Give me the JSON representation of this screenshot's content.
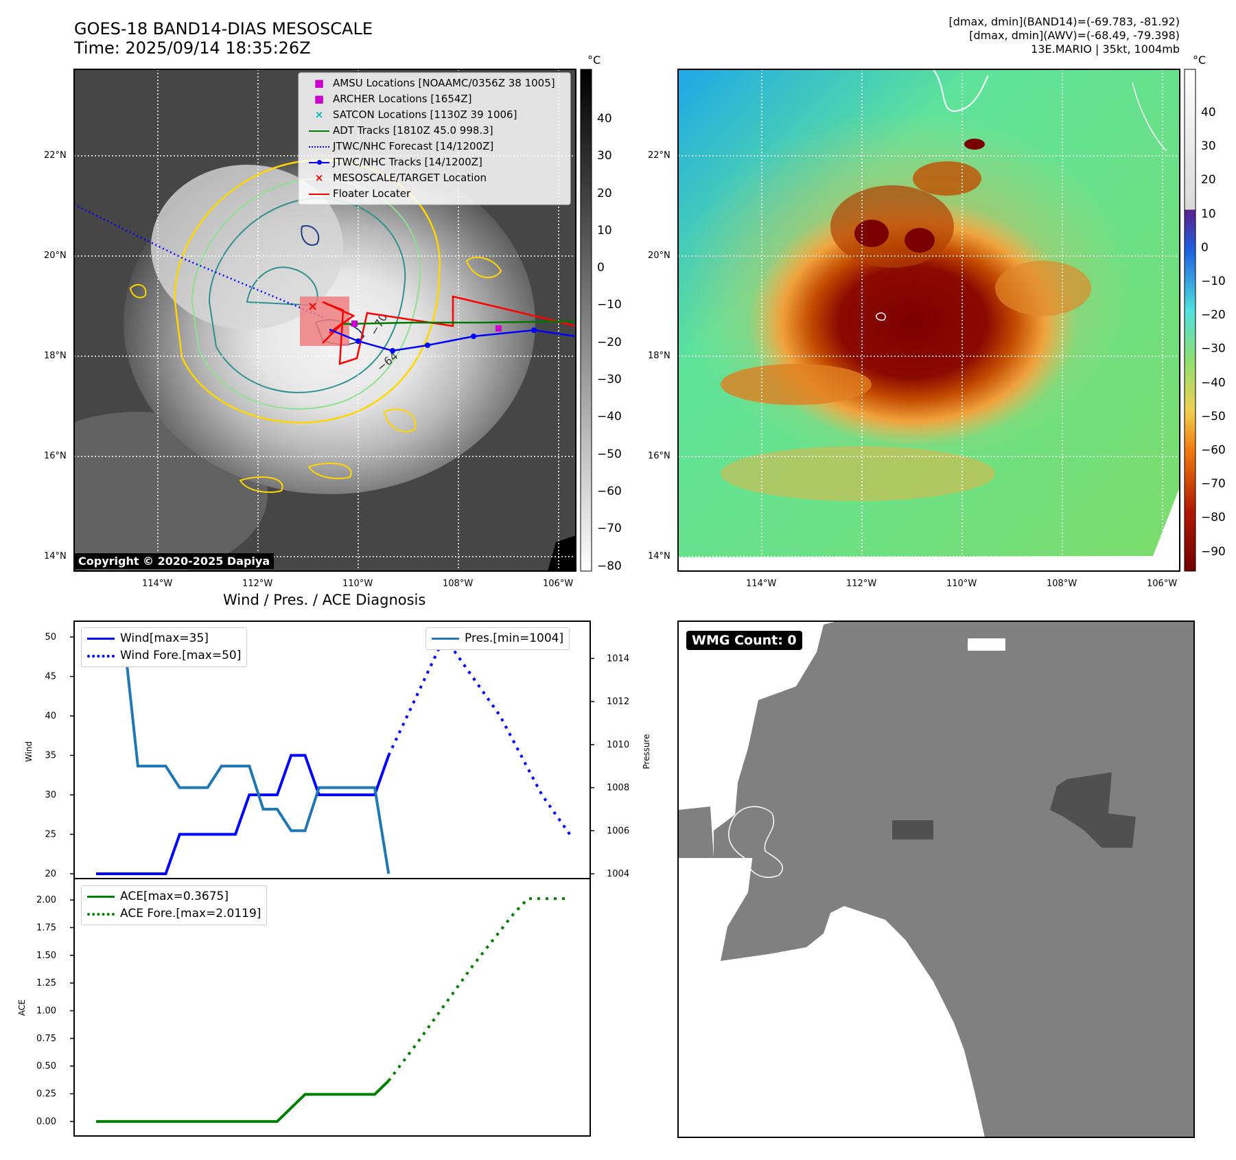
{
  "header": {
    "title_line1": "GOES-18 BAND14-DIAS MESOSCALE",
    "title_line2": "Time: 2025/09/14 18:35:26Z",
    "info_line1": "[dmax, dmin](BAND14)=(-69.783, -81.92)",
    "info_line2": "[dmax, dmin](AWV)=(-68.49, -79.398)",
    "info_line3": "13E.MARIO | 35kt, 1004mb"
  },
  "map_panel": {
    "lat_labels": [
      "22°N",
      "20°N",
      "18°N",
      "16°N",
      "14°N"
    ],
    "lon_labels": [
      "114°W",
      "112°W",
      "110°W",
      "108°W",
      "106°W"
    ],
    "copyright": "Copyright © 2020-2025 Dapiya",
    "colorbar_unit": "°C",
    "colorbar_ticks": [
      "40",
      "30",
      "20",
      "10",
      "0",
      "−10",
      "−20",
      "−30",
      "−40",
      "−50",
      "−60",
      "−70",
      "−80"
    ],
    "contour_labels": [
      "−64",
      "−70"
    ],
    "legend": [
      {
        "label": "AMSU Locations [NOAAMC/0356Z 38 1005]",
        "color": "#cc00cc",
        "marker": "square"
      },
      {
        "label": "ARCHER Locations [1654Z]",
        "color": "#cc00cc",
        "marker": "square"
      },
      {
        "label": "SATCON Locations [1130Z 39 1006]",
        "color": "#00bbbb",
        "marker": "x"
      },
      {
        "label": "ADT Tracks [1810Z 45.0 998.3]",
        "color": "#007700",
        "marker": "line"
      },
      {
        "label": "JTWC/NHC Forecast [14/1200Z]",
        "color": "#0000ff",
        "marker": "dotted"
      },
      {
        "label": "JTWC/NHC Tracks [14/1200Z]",
        "color": "#0000ff",
        "marker": "line-dot"
      },
      {
        "label": "MESOSCALE/TARGET Location",
        "color": "#ff0000",
        "marker": "x"
      },
      {
        "label": "Floater Locater",
        "color": "#ff0000",
        "marker": "line"
      }
    ]
  },
  "awv_panel": {
    "lat_labels": [
      "22°N",
      "20°N",
      "18°N",
      "16°N",
      "14°N"
    ],
    "lon_labels": [
      "114°W",
      "112°W",
      "110°W",
      "108°W",
      "106°W"
    ],
    "colorbar_unit": "°C",
    "colorbar_ticks": [
      "40",
      "30",
      "20",
      "10",
      "0",
      "−10",
      "−20",
      "−30",
      "−40",
      "−50",
      "−60",
      "−70",
      "−80",
      "−90"
    ]
  },
  "wmg_panel": {
    "badge": "WMG Count: 0"
  },
  "diagnosis": {
    "title": "Wind / Pres. / ACE Diagnosis"
  },
  "chart_data": [
    {
      "type": "line",
      "title": "Wind / Pres. / ACE Diagnosis",
      "ylabel": "Wind",
      "ylabel_right": "Pressure",
      "ylim": [
        20,
        50
      ],
      "ylim_right": [
        1004,
        1015
      ],
      "yticks": [
        "50",
        "45",
        "40",
        "35",
        "30",
        "25",
        "20"
      ],
      "yticks_right": [
        "1014",
        "1012",
        "1010",
        "1008",
        "1006",
        "1004"
      ],
      "legend_left": [
        "Wind[max=35]",
        "Wind Fore.[max=50]"
      ],
      "legend_right": [
        "Pres.[min=1004]"
      ],
      "series": [
        {
          "name": "Wind[max=35]",
          "color": "#0000ff",
          "style": "solid",
          "axis": "left",
          "x": [
            0,
            5,
            6,
            10,
            11,
            13,
            14,
            15,
            16,
            20,
            21
          ],
          "values": [
            20,
            20,
            25,
            25,
            30,
            30,
            35,
            35,
            30,
            30,
            35
          ]
        },
        {
          "name": "Wind Fore.[max=50]",
          "color": "#0000ff",
          "style": "dotted",
          "axis": "left",
          "x": [
            21,
            25,
            29,
            32,
            34
          ],
          "values": [
            35,
            50,
            40,
            30,
            25
          ]
        },
        {
          "name": "Pres.[min=1004]",
          "color": "#1f77b4",
          "style": "solid",
          "axis": "right",
          "x": [
            0,
            2,
            3,
            5,
            6,
            8,
            9,
            11,
            12,
            13,
            14,
            15,
            16,
            20,
            21
          ],
          "values": [
            1015,
            1015,
            1009,
            1009,
            1008,
            1008,
            1009,
            1009,
            1007,
            1007,
            1006,
            1006,
            1008,
            1008,
            1004
          ]
        }
      ]
    },
    {
      "type": "line",
      "ylabel": "ACE",
      "ylim": [
        -0.1,
        2.1
      ],
      "yticks": [
        "2.00",
        "1.75",
        "1.50",
        "1.25",
        "1.00",
        "0.75",
        "0.50",
        "0.25",
        "0.00"
      ],
      "legend": [
        "ACE[max=0.3675]",
        "ACE Fore.[max=2.0119]"
      ],
      "series": [
        {
          "name": "ACE[max=0.3675]",
          "color": "#008000",
          "style": "solid",
          "x": [
            0,
            13,
            15,
            20,
            21
          ],
          "values": [
            0.0,
            0.0,
            0.245,
            0.245,
            0.3675
          ]
        },
        {
          "name": "ACE Fore.[max=2.0119]",
          "color": "#008000",
          "style": "dotted",
          "x": [
            21,
            23,
            25,
            27,
            29,
            30,
            31,
            32,
            34
          ],
          "values": [
            0.3675,
            0.7,
            1.05,
            1.4,
            1.72,
            1.88,
            2.0119,
            2.0119,
            2.0119
          ]
        }
      ]
    }
  ]
}
